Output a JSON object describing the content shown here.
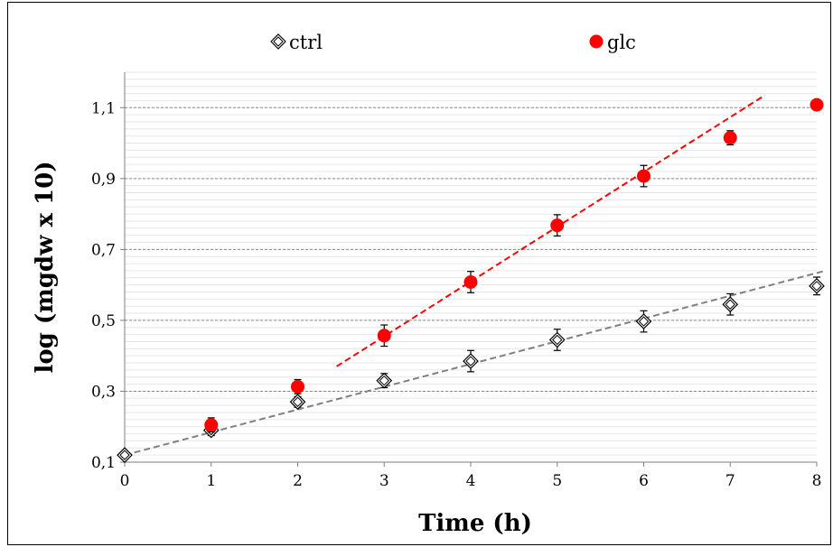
{
  "chart_data": {
    "type": "scatter",
    "title": "",
    "xlabel": "Time (h)",
    "ylabel": "log (mgdw x 10)",
    "xlim": [
      0,
      8
    ],
    "ylim": [
      0.1,
      1.2
    ],
    "x_ticks": [
      0,
      1,
      2,
      3,
      4,
      5,
      6,
      7,
      8
    ],
    "x_tick_labels": [
      "0",
      "1",
      "2",
      "3",
      "4",
      "5",
      "6",
      "7",
      "8"
    ],
    "y_ticks": [
      0.1,
      0.3,
      0.5,
      0.7,
      0.9,
      1.1
    ],
    "y_tick_labels": [
      "0,1",
      "0,3",
      "0,5",
      "0,7",
      "0,9",
      "1,1"
    ],
    "grid": true,
    "legend_position": "top",
    "series": [
      {
        "name": "ctrl",
        "marker": "open-diamond",
        "color": "#000000",
        "x": [
          0,
          1,
          2,
          3,
          4,
          5,
          6,
          7,
          8
        ],
        "y": [
          0.12,
          0.19,
          0.27,
          0.33,
          0.385,
          0.445,
          0.497,
          0.545,
          0.597
        ],
        "error": [
          0.01,
          0.015,
          0.015,
          0.02,
          0.03,
          0.03,
          0.03,
          0.03,
          0.025
        ],
        "trendline": {
          "x": [
            0,
            8.1
          ],
          "y": [
            0.12,
            0.64
          ],
          "color": "#808080"
        }
      },
      {
        "name": "glc",
        "marker": "filled-circle",
        "color": "#ff0000",
        "x": [
          1,
          2,
          3,
          4,
          5,
          6,
          7,
          8
        ],
        "y": [
          0.205,
          0.313,
          0.457,
          0.608,
          0.768,
          0.907,
          1.015,
          1.108
        ],
        "error": [
          0.02,
          0.02,
          0.03,
          0.03,
          0.03,
          0.03,
          0.02,
          0.0
        ],
        "trendline": {
          "x": [
            2.45,
            7.4
          ],
          "y": [
            0.37,
            1.135
          ],
          "color": "#ff0000"
        }
      }
    ]
  }
}
